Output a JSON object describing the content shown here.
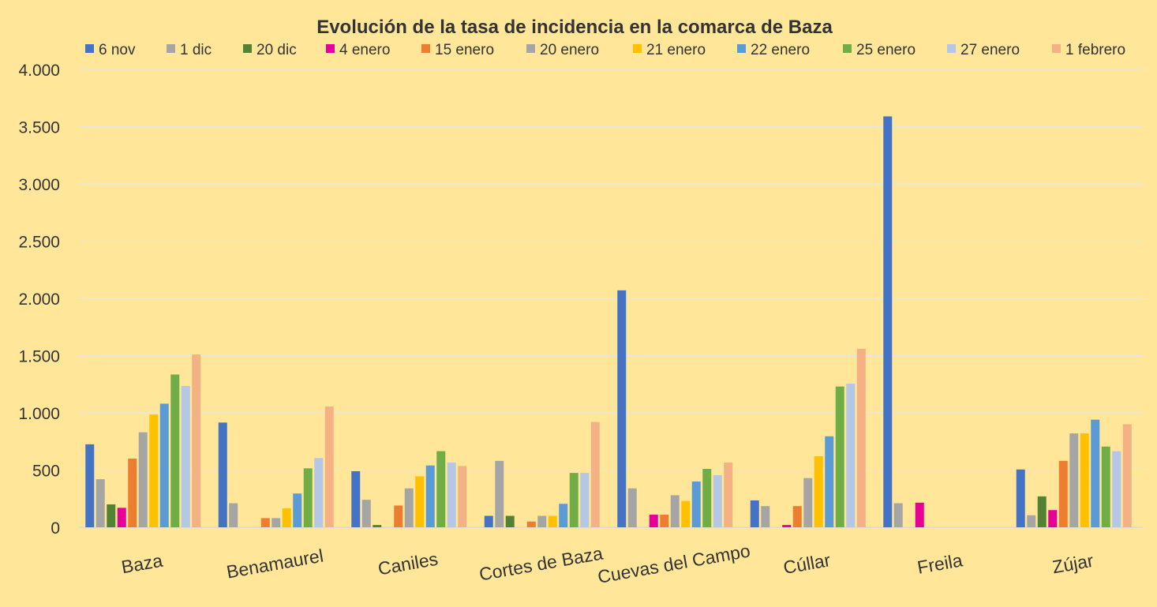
{
  "chart_data": {
    "type": "bar",
    "title": "Evolución de la tasa de incidencia en la comarca de Baza",
    "xlabel": "",
    "ylabel": "",
    "ylim": [
      0,
      4000
    ],
    "yticks": [
      0,
      500,
      1000,
      1500,
      2000,
      2500,
      3000,
      3500,
      4000
    ],
    "ytick_labels": [
      "0",
      "500",
      "1.000",
      "1.500",
      "2.000",
      "2.500",
      "3.000",
      "3.500",
      "4.000"
    ],
    "grid": true,
    "legend_position": "top",
    "categories": [
      "Baza",
      "Benamaurel",
      "Caniles",
      "Cortes de Baza",
      "Cuevas del Campo",
      "Cúllar",
      "Freila",
      "Zújar"
    ],
    "series": [
      {
        "name": "6 nov",
        "color": "#4472C4",
        "values": [
          725,
          915,
          490,
          100,
          2070,
          235,
          3590,
          505
        ]
      },
      {
        "name": "1 dic",
        "color": "#A5A5A5",
        "values": [
          420,
          210,
          240,
          580,
          340,
          185,
          210,
          105
        ]
      },
      {
        "name": "20 dic",
        "color": "#548235",
        "values": [
          200,
          0,
          20,
          100,
          0,
          0,
          0,
          270
        ]
      },
      {
        "name": "4 enero",
        "color": "#E60099",
        "values": [
          170,
          0,
          0,
          0,
          110,
          20,
          215,
          150
        ]
      },
      {
        "name": "15 enero",
        "color": "#ED7D31",
        "values": [
          600,
          80,
          190,
          50,
          110,
          185,
          0,
          580
        ]
      },
      {
        "name": "20 enero",
        "color": "#A5A5A5",
        "values": [
          830,
          80,
          340,
          100,
          280,
          430,
          0,
          820
        ]
      },
      {
        "name": "21 enero",
        "color": "#FFC000",
        "values": [
          985,
          165,
          445,
          100,
          230,
          620,
          0,
          820
        ]
      },
      {
        "name": "22 enero",
        "color": "#5B9BD5",
        "values": [
          1080,
          295,
          540,
          205,
          400,
          795,
          0,
          940
        ]
      },
      {
        "name": "25 enero",
        "color": "#70AD47",
        "values": [
          1335,
          515,
          665,
          475,
          510,
          1230,
          0,
          705
        ]
      },
      {
        "name": "27 enero",
        "color": "#B4C7E7",
        "values": [
          1235,
          605,
          565,
          475,
          455,
          1255,
          0,
          665
        ]
      },
      {
        "name": "1 febrero",
        "color": "#F4B183",
        "values": [
          1510,
          1055,
          535,
          920,
          565,
          1560,
          0,
          900
        ]
      }
    ]
  }
}
